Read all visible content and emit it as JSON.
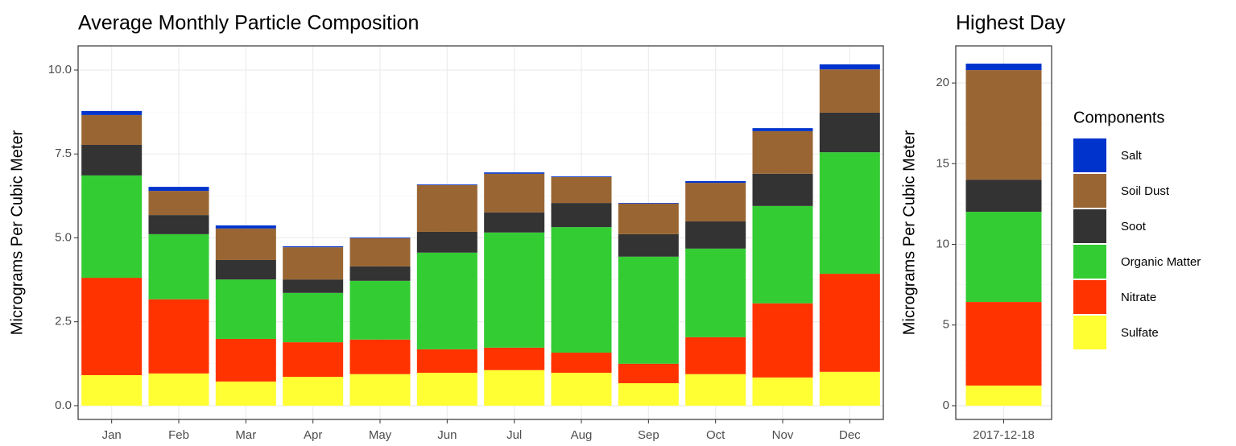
{
  "chart_data": [
    {
      "type": "bar",
      "stacked": true,
      "title": "Average Monthly Particle Composition",
      "y_label": "Micrograms Per Cubic Meter",
      "categories": [
        "Jan",
        "Feb",
        "Mar",
        "Apr",
        "May",
        "Jun",
        "Jul",
        "Aug",
        "Sep",
        "Oct",
        "Nov",
        "Dec"
      ],
      "series": [
        {
          "name": "Sulfate",
          "color": "#ffff33",
          "values": [
            0.91,
            0.96,
            0.72,
            0.86,
            0.94,
            0.98,
            1.06,
            0.98,
            0.67,
            0.94,
            0.84,
            1.01
          ]
        },
        {
          "name": "Nitrate",
          "color": "#ff3300",
          "values": [
            2.9,
            2.21,
            1.27,
            1.03,
            1.03,
            0.7,
            0.67,
            0.6,
            0.58,
            1.1,
            2.21,
            2.92
          ]
        },
        {
          "name": "Organic Matter",
          "color": "#33cc33",
          "values": [
            3.05,
            1.94,
            1.77,
            1.47,
            1.75,
            2.88,
            3.43,
            3.74,
            3.19,
            2.64,
            2.9,
            3.62
          ]
        },
        {
          "name": "Soot",
          "color": "#333333",
          "values": [
            0.91,
            0.57,
            0.58,
            0.4,
            0.43,
            0.62,
            0.6,
            0.72,
            0.67,
            0.81,
            0.96,
            1.18
          ]
        },
        {
          "name": "Soil Dust",
          "color": "#996633",
          "values": [
            0.89,
            0.72,
            0.94,
            0.96,
            0.84,
            1.39,
            1.15,
            0.77,
            0.91,
            1.15,
            1.27,
            1.29
          ]
        },
        {
          "name": "Salt",
          "color": "#0033cc",
          "values": [
            0.12,
            0.12,
            0.09,
            0.03,
            0.02,
            0.02,
            0.04,
            0.02,
            0.02,
            0.05,
            0.09,
            0.15
          ]
        }
      ],
      "ylim": [
        -0.41,
        10.72
      ],
      "yticks": [
        {
          "value": 0,
          "label": "0.0"
        },
        2.5,
        {
          "value": 5,
          "label": "5.0"
        },
        7.5,
        {
          "value": 10,
          "label": "10.0"
        }
      ],
      "grid": true
    },
    {
      "type": "bar",
      "stacked": true,
      "title": "Highest Day",
      "y_label": "Micrograms Per Cubic Meter",
      "categories": [
        "2017-12-18"
      ],
      "series": [
        {
          "name": "Sulfate",
          "color": "#ffff33",
          "values": [
            1.25
          ]
        },
        {
          "name": "Nitrate",
          "color": "#ff3300",
          "values": [
            5.18
          ]
        },
        {
          "name": "Organic Matter",
          "color": "#33cc33",
          "values": [
            5.59
          ]
        },
        {
          "name": "Soot",
          "color": "#333333",
          "values": [
            1.99
          ]
        },
        {
          "name": "Soil Dust",
          "color": "#996633",
          "values": [
            6.79
          ]
        },
        {
          "name": "Salt",
          "color": "#0033cc",
          "values": [
            0.4
          ]
        }
      ],
      "ylim": [
        -0.85,
        22.3
      ],
      "yticks": [
        0,
        5,
        10,
        15,
        20
      ],
      "grid": true,
      "legend_title": "Components",
      "legend_position": "right"
    }
  ]
}
